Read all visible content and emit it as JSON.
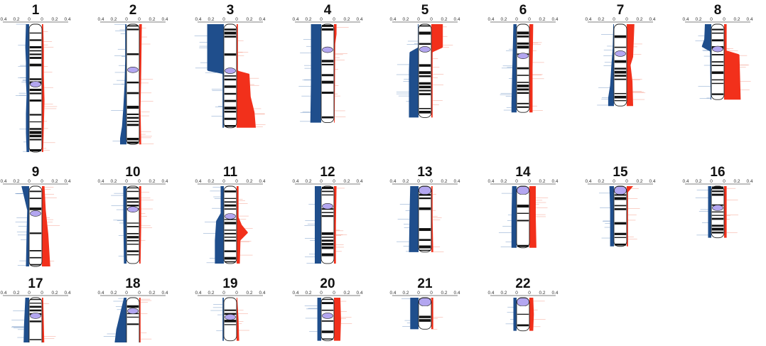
{
  "colors": {
    "loss": "#1f4e8c",
    "gain": "#f2301b",
    "centromere": "#b3a6f0",
    "axis": "#555555"
  },
  "axis_ticks": [
    "0.4",
    "0.2",
    "0",
    "0",
    "0.2",
    "0.4"
  ],
  "chromosomes": [
    {
      "label": "1",
      "row": 0,
      "col": 0,
      "length": 1.0,
      "centromere": 0.47,
      "acro": false,
      "loss": [
        [
          0,
          0.05
        ],
        [
          0.18,
          0.06
        ],
        [
          0.3,
          0.05
        ],
        [
          0.45,
          0.05
        ],
        [
          0.55,
          0.04
        ],
        [
          0.7,
          0.05
        ],
        [
          0.85,
          0.05
        ],
        [
          1,
          0.04
        ]
      ],
      "gain": [
        [
          0,
          0.02
        ],
        [
          0.2,
          0.03
        ],
        [
          0.4,
          0.03
        ],
        [
          0.6,
          0.04
        ],
        [
          0.8,
          0.03
        ],
        [
          1,
          0.02
        ]
      ]
    },
    {
      "label": "2",
      "row": 0,
      "col": 1,
      "length": 0.94,
      "centromere": 0.38,
      "acro": false,
      "loss": [
        [
          0,
          0.02
        ],
        [
          0.3,
          0.02
        ],
        [
          0.5,
          0.03
        ],
        [
          0.7,
          0.05
        ],
        [
          0.85,
          0.07
        ],
        [
          0.95,
          0.1
        ],
        [
          1,
          0.1
        ]
      ],
      "gain": [
        [
          0,
          0.04
        ],
        [
          0.4,
          0.03
        ],
        [
          0.7,
          0.02
        ],
        [
          1,
          0.03
        ]
      ]
    },
    {
      "label": "3",
      "row": 0,
      "col": 2,
      "length": 0.81,
      "centromere": 0.45,
      "acro": false,
      "loss": [
        [
          0,
          0.26
        ],
        [
          0.45,
          0.26
        ],
        [
          0.48,
          0.02
        ],
        [
          1,
          0.02
        ]
      ],
      "gain": [
        [
          0,
          0.02
        ],
        [
          0.45,
          0.02
        ],
        [
          0.48,
          0.2
        ],
        [
          0.7,
          0.22
        ],
        [
          0.85,
          0.28
        ],
        [
          1,
          0.3
        ]
      ]
    },
    {
      "label": "4",
      "row": 0,
      "col": 3,
      "length": 0.77,
      "centromere": 0.26,
      "acro": false,
      "loss": [
        [
          0,
          0.16
        ],
        [
          0.3,
          0.16
        ],
        [
          0.6,
          0.16
        ],
        [
          1,
          0.17
        ]
      ],
      "gain": [
        [
          0,
          0.04
        ],
        [
          0.1,
          0.04
        ],
        [
          0.2,
          0.02
        ],
        [
          1,
          0.01
        ]
      ]
    },
    {
      "label": "5",
      "row": 0,
      "col": 4,
      "length": 0.73,
      "centromere": 0.27,
      "acro": false,
      "loss": [
        [
          0,
          0.01
        ],
        [
          0.25,
          0.01
        ],
        [
          0.3,
          0.14
        ],
        [
          0.5,
          0.15
        ],
        [
          1,
          0.15
        ]
      ],
      "gain": [
        [
          0,
          0.18
        ],
        [
          0.25,
          0.18
        ],
        [
          0.3,
          0.02
        ],
        [
          1,
          0.02
        ]
      ]
    },
    {
      "label": "6",
      "row": 0,
      "col": 5,
      "length": 0.69,
      "centromere": 0.36,
      "acro": false,
      "loss": [
        [
          0,
          0.05
        ],
        [
          0.3,
          0.06
        ],
        [
          0.6,
          0.07
        ],
        [
          0.9,
          0.08
        ],
        [
          1,
          0.08
        ]
      ],
      "gain": [
        [
          0,
          0.06
        ],
        [
          0.5,
          0.05
        ],
        [
          1,
          0.05
        ]
      ]
    },
    {
      "label": "7",
      "row": 0,
      "col": 6,
      "length": 0.64,
      "centromere": 0.36,
      "acro": false,
      "loss": [
        [
          0,
          0.01
        ],
        [
          0.3,
          0.02
        ],
        [
          0.5,
          0.04
        ],
        [
          0.75,
          0.06
        ],
        [
          0.9,
          0.09
        ],
        [
          1,
          0.09
        ]
      ],
      "gain": [
        [
          0,
          0.12
        ],
        [
          0.4,
          0.1
        ],
        [
          0.5,
          0.06
        ],
        [
          0.7,
          0.09
        ],
        [
          1,
          0.1
        ]
      ]
    },
    {
      "label": "8",
      "row": 0,
      "col": 7,
      "length": 0.59,
      "centromere": 0.33,
      "acro": false,
      "loss": [
        [
          0,
          0.1
        ],
        [
          0.2,
          0.11
        ],
        [
          0.3,
          0.15
        ],
        [
          0.36,
          0.02
        ],
        [
          1,
          0.01
        ]
      ],
      "gain": [
        [
          0,
          0.04
        ],
        [
          0.35,
          0.04
        ],
        [
          0.4,
          0.24
        ],
        [
          1,
          0.26
        ]
      ]
    },
    {
      "label": "9",
      "row": 1,
      "col": 0,
      "length": 0.56,
      "centromere": 0.34,
      "acro": false,
      "loss": [
        [
          0,
          0.12
        ],
        [
          0.2,
          0.06
        ],
        [
          0.3,
          0.03
        ],
        [
          0.6,
          0.04
        ],
        [
          1,
          0.05
        ]
      ],
      "gain": [
        [
          0,
          0.04
        ],
        [
          0.3,
          0.06
        ],
        [
          0.6,
          0.1
        ],
        [
          1,
          0.13
        ]
      ]
    },
    {
      "label": "10",
      "row": 1,
      "col": 1,
      "length": 0.54,
      "centromere": 0.3,
      "acro": false,
      "loss": [
        [
          0,
          0.05
        ],
        [
          0.4,
          0.05
        ],
        [
          1,
          0.04
        ]
      ],
      "gain": [
        [
          0,
          0.03
        ],
        [
          0.5,
          0.03
        ],
        [
          1,
          0.02
        ]
      ]
    },
    {
      "label": "11",
      "row": 1,
      "col": 2,
      "length": 0.54,
      "centromere": 0.39,
      "acro": false,
      "loss": [
        [
          0,
          0.05
        ],
        [
          0.35,
          0.05
        ],
        [
          0.45,
          0.12
        ],
        [
          0.7,
          0.14
        ],
        [
          1,
          0.14
        ]
      ],
      "gain": [
        [
          0,
          0.03
        ],
        [
          0.4,
          0.03
        ],
        [
          0.5,
          0.08
        ],
        [
          0.6,
          0.18
        ],
        [
          0.7,
          0.06
        ],
        [
          1,
          0.05
        ]
      ]
    },
    {
      "label": "12",
      "row": 1,
      "col": 3,
      "length": 0.54,
      "centromere": 0.26,
      "acro": false,
      "loss": [
        [
          0,
          0.1
        ],
        [
          0.5,
          0.1
        ],
        [
          1,
          0.1
        ]
      ],
      "gain": [
        [
          0,
          0.04
        ],
        [
          0.5,
          0.03
        ],
        [
          1,
          0.03
        ]
      ]
    },
    {
      "label": "13",
      "row": 1,
      "col": 4,
      "length": 0.46,
      "centromere": 0.0,
      "acro": true,
      "loss": [
        [
          0,
          0.13
        ],
        [
          0.4,
          0.14
        ],
        [
          1,
          0.15
        ]
      ],
      "gain": [
        [
          0,
          0.02
        ],
        [
          0.5,
          0.02
        ],
        [
          1,
          0.03
        ]
      ]
    },
    {
      "label": "14",
      "row": 1,
      "col": 5,
      "length": 0.43,
      "centromere": 0.0,
      "acro": true,
      "loss": [
        [
          0,
          0.07
        ],
        [
          0.5,
          0.08
        ],
        [
          1,
          0.08
        ]
      ],
      "gain": [
        [
          0,
          0.1
        ],
        [
          0.5,
          0.1
        ],
        [
          1,
          0.11
        ]
      ]
    },
    {
      "label": "15",
      "row": 1,
      "col": 6,
      "length": 0.42,
      "centromere": 0.0,
      "acro": true,
      "loss": [
        [
          0,
          0.07
        ],
        [
          0.4,
          0.06
        ],
        [
          1,
          0.06
        ]
      ],
      "gain": [
        [
          0,
          0.1
        ],
        [
          0.1,
          0.02
        ],
        [
          1,
          0.02
        ]
      ]
    },
    {
      "label": "16",
      "row": 1,
      "col": 7,
      "length": 0.36,
      "centromere": 0.42,
      "acro": false,
      "loss": [
        [
          0,
          0.05
        ],
        [
          0.5,
          0.05
        ],
        [
          1,
          0.05
        ]
      ],
      "gain": [
        [
          0,
          0.04
        ],
        [
          0.5,
          0.04
        ],
        [
          1,
          0.04
        ]
      ]
    },
    {
      "label": "17",
      "row": 2,
      "col": 0,
      "length": 0.33,
      "centromere": 0.33,
      "acro": false,
      "loss": [
        [
          0,
          0.06
        ],
        [
          0.5,
          0.08
        ],
        [
          1,
          0.09
        ]
      ],
      "gain": [
        [
          0,
          0.02
        ],
        [
          0.5,
          0.03
        ],
        [
          1,
          0.04
        ]
      ]
    },
    {
      "label": "18",
      "row": 2,
      "col": 1,
      "length": 0.32,
      "centromere": 0.25,
      "acro": false,
      "loss": [
        [
          0,
          0.04
        ],
        [
          0.3,
          0.1
        ],
        [
          0.6,
          0.16
        ],
        [
          1,
          0.2
        ]
      ],
      "gain": [
        [
          0,
          0.02
        ],
        [
          0.5,
          0.02
        ],
        [
          1,
          0.02
        ]
      ]
    },
    {
      "label": "19",
      "row": 2,
      "col": 2,
      "length": 0.26,
      "centromere": 0.45,
      "acro": false,
      "loss": [
        [
          0,
          0.02
        ],
        [
          0.5,
          0.02
        ],
        [
          1,
          0.02
        ]
      ],
      "gain": [
        [
          0,
          0.01
        ],
        [
          0.5,
          0.03
        ],
        [
          1,
          0.04
        ]
      ]
    },
    {
      "label": "20",
      "row": 2,
      "col": 3,
      "length": 0.26,
      "centromere": 0.42,
      "acro": false,
      "loss": [
        [
          0,
          0.06
        ],
        [
          0.5,
          0.06
        ],
        [
          1,
          0.06
        ]
      ],
      "gain": [
        [
          0,
          0.1
        ],
        [
          0.5,
          0.11
        ],
        [
          1,
          0.1
        ]
      ]
    },
    {
      "label": "21",
      "row": 2,
      "col": 4,
      "length": 0.19,
      "centromere": 0.0,
      "acro": true,
      "loss": [
        [
          0,
          0.13
        ],
        [
          0.5,
          0.13
        ],
        [
          1,
          0.13
        ]
      ],
      "gain": [
        [
          0,
          0.03
        ],
        [
          0.5,
          0.03
        ],
        [
          1,
          0.03
        ]
      ]
    },
    {
      "label": "22",
      "row": 2,
      "col": 5,
      "length": 0.2,
      "centromere": 0.0,
      "acro": true,
      "loss": [
        [
          0,
          0.05
        ],
        [
          0.5,
          0.05
        ],
        [
          1,
          0.05
        ]
      ],
      "gain": [
        [
          0,
          0.06
        ],
        [
          0.5,
          0.07
        ],
        [
          1,
          0.06
        ]
      ]
    }
  ]
}
